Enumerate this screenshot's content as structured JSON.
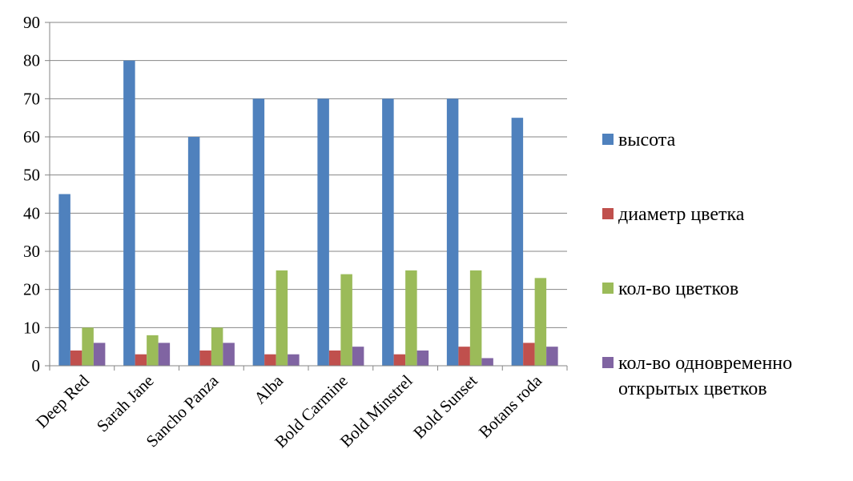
{
  "chart_data": {
    "type": "bar",
    "title": "",
    "xlabel": "",
    "ylabel": "",
    "ylim": [
      0,
      90
    ],
    "yticks": [
      0,
      10,
      20,
      30,
      40,
      50,
      60,
      70,
      80,
      90
    ],
    "grid": true,
    "legend_position": "right",
    "categories": [
      "Deep Red",
      "Sarah Jane",
      "Sancho Panza",
      "Alba",
      "Bold Carmine",
      "Bold Minstrel",
      "Bold Sunset",
      "Botans roda"
    ],
    "series": [
      {
        "name": "высота",
        "color": "#4F81BD",
        "values": [
          45,
          80,
          60,
          70,
          70,
          70,
          70,
          65
        ]
      },
      {
        "name": "диаметр цветка",
        "color": "#C0504D",
        "values": [
          4,
          3,
          4,
          3,
          4,
          3,
          5,
          6
        ]
      },
      {
        "name": "кол-во цветков",
        "color": "#9BBB59",
        "values": [
          10,
          8,
          10,
          25,
          24,
          25,
          25,
          23
        ]
      },
      {
        "name": "кол-во одновременно открытых цветков",
        "legend_lines": [
          "кол-во одновременно",
          "открытых цветков"
        ],
        "color": "#8064A2",
        "values": [
          6,
          6,
          6,
          3,
          5,
          4,
          2,
          5
        ]
      }
    ]
  }
}
